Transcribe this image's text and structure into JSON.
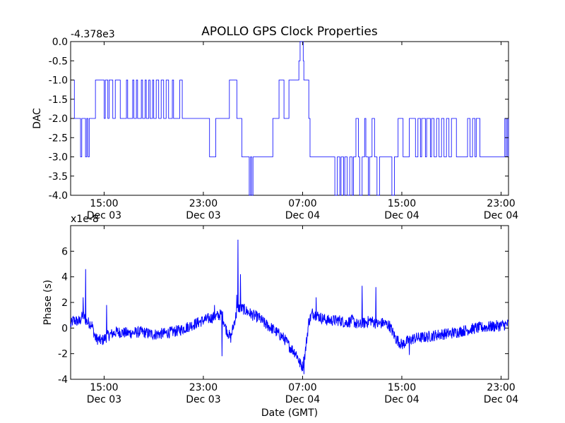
{
  "chart_data": [
    {
      "type": "line",
      "title": "APOLLO GPS Clock Properties",
      "ylabel": "DAC",
      "xlabel": "",
      "offset_label": "-4.378e3",
      "ylim": [
        -4.0,
        0.0
      ],
      "yticks": [
        "0.0",
        "-0.5",
        "-1.0",
        "-1.5",
        "-2.0",
        "-2.5",
        "-3.0",
        "-3.5",
        "-4.0"
      ],
      "xticks": [
        {
          "time": "15:00",
          "date": "Dec 03",
          "hours": 15
        },
        {
          "time": "23:00",
          "date": "Dec 03",
          "hours": 23
        },
        {
          "time": "07:00",
          "date": "Dec 04",
          "hours": 31
        },
        {
          "time": "15:00",
          "date": "Dec 04",
          "hours": 39
        },
        {
          "time": "23:00",
          "date": "Dec 04",
          "hours": 47
        }
      ],
      "xlim_hours": [
        12.3,
        47.6
      ],
      "series": [
        {
          "color": "#0000ff",
          "points": [
            [
              12.3,
              -1.0
            ],
            [
              12.6,
              -2.0
            ],
            [
              13.0,
              -2.0
            ],
            [
              13.1,
              -3.0
            ],
            [
              13.2,
              -2.0
            ],
            [
              13.5,
              -3.0
            ],
            [
              13.6,
              -2.0
            ],
            [
              13.7,
              -3.0
            ],
            [
              13.8,
              -2.0
            ],
            [
              14.2,
              -2.0
            ],
            [
              14.3,
              -1.0
            ],
            [
              14.9,
              -1.0
            ],
            [
              15.0,
              -2.0
            ],
            [
              15.1,
              -1.0
            ],
            [
              15.3,
              -2.0
            ],
            [
              15.4,
              -1.0
            ],
            [
              15.6,
              -1.0
            ],
            [
              15.7,
              -2.0
            ],
            [
              15.9,
              -1.0
            ],
            [
              16.2,
              -1.0
            ],
            [
              16.3,
              -2.0
            ],
            [
              16.7,
              -2.0
            ],
            [
              16.8,
              -1.0
            ],
            [
              16.9,
              -2.0
            ],
            [
              17.2,
              -2.0
            ],
            [
              17.3,
              -1.0
            ],
            [
              17.4,
              -2.0
            ],
            [
              17.6,
              -1.0
            ],
            [
              17.7,
              -2.0
            ],
            [
              18.0,
              -1.0
            ],
            [
              18.1,
              -2.0
            ],
            [
              18.3,
              -1.0
            ],
            [
              18.4,
              -2.0
            ],
            [
              18.6,
              -1.0
            ],
            [
              18.7,
              -2.0
            ],
            [
              18.9,
              -1.0
            ],
            [
              19.0,
              -2.0
            ],
            [
              19.2,
              -1.0
            ],
            [
              19.4,
              -2.0
            ],
            [
              19.6,
              -1.0
            ],
            [
              19.8,
              -2.0
            ],
            [
              20.0,
              -1.0
            ],
            [
              20.2,
              -2.0
            ],
            [
              20.5,
              -1.0
            ],
            [
              20.6,
              -2.0
            ],
            [
              21.0,
              -2.0
            ],
            [
              21.1,
              -1.0
            ],
            [
              21.3,
              -2.0
            ],
            [
              22.0,
              -2.0
            ],
            [
              23.0,
              -2.0
            ],
            [
              23.4,
              -2.0
            ],
            [
              23.5,
              -3.0
            ],
            [
              23.9,
              -3.0
            ],
            [
              24.0,
              -2.0
            ],
            [
              25.0,
              -2.0
            ],
            [
              25.1,
              -1.0
            ],
            [
              25.6,
              -1.0
            ],
            [
              25.7,
              -2.0
            ],
            [
              26.0,
              -2.0
            ],
            [
              26.1,
              -3.0
            ],
            [
              26.6,
              -3.0
            ],
            [
              26.7,
              -4.0
            ],
            [
              26.8,
              -3.0
            ],
            [
              26.9,
              -4.0
            ],
            [
              27.0,
              -3.0
            ],
            [
              28.5,
              -3.0
            ],
            [
              28.6,
              -2.0
            ],
            [
              29.0,
              -2.0
            ],
            [
              29.1,
              -1.0
            ],
            [
              29.4,
              -1.0
            ],
            [
              29.5,
              -2.0
            ],
            [
              29.8,
              -2.0
            ],
            [
              29.9,
              -1.0
            ],
            [
              30.6,
              -1.0
            ],
            [
              30.7,
              -0.5
            ],
            [
              30.8,
              0.0
            ],
            [
              30.95,
              0.0
            ],
            [
              31.05,
              -0.5
            ],
            [
              31.1,
              -1.0
            ],
            [
              31.4,
              -1.0
            ],
            [
              31.5,
              -2.0
            ],
            [
              31.6,
              -3.0
            ],
            [
              33.5,
              -3.0
            ],
            [
              33.6,
              -4.0
            ],
            [
              33.8,
              -3.0
            ],
            [
              34.0,
              -4.0
            ],
            [
              34.1,
              -3.0
            ],
            [
              34.3,
              -4.0
            ],
            [
              34.4,
              -3.0
            ],
            [
              34.6,
              -4.0
            ],
            [
              34.8,
              -3.0
            ],
            [
              35.0,
              -4.0
            ],
            [
              35.1,
              -3.0
            ],
            [
              35.3,
              -2.0
            ],
            [
              35.5,
              -3.0
            ],
            [
              35.6,
              -4.0
            ],
            [
              35.8,
              -3.0
            ],
            [
              36.0,
              -2.0
            ],
            [
              36.1,
              -3.0
            ],
            [
              36.3,
              -4.0
            ],
            [
              36.4,
              -3.0
            ],
            [
              36.6,
              -2.0
            ],
            [
              36.8,
              -3.0
            ],
            [
              37.0,
              -4.0
            ],
            [
              37.2,
              -3.0
            ],
            [
              38.0,
              -3.0
            ],
            [
              38.2,
              -4.0
            ],
            [
              38.4,
              -3.0
            ],
            [
              38.6,
              -3.0
            ],
            [
              38.7,
              -2.0
            ],
            [
              39.0,
              -2.0
            ],
            [
              39.1,
              -3.0
            ],
            [
              39.5,
              -3.0
            ],
            [
              39.6,
              -2.0
            ],
            [
              40.0,
              -2.0
            ],
            [
              40.1,
              -3.0
            ],
            [
              40.3,
              -2.0
            ],
            [
              40.5,
              -3.0
            ],
            [
              40.6,
              -2.0
            ],
            [
              40.9,
              -3.0
            ],
            [
              41.0,
              -2.0
            ],
            [
              41.3,
              -3.0
            ],
            [
              41.4,
              -2.0
            ],
            [
              41.6,
              -3.0
            ],
            [
              41.8,
              -2.0
            ],
            [
              42.0,
              -3.0
            ],
            [
              42.2,
              -2.0
            ],
            [
              42.4,
              -3.0
            ],
            [
              42.6,
              -2.0
            ],
            [
              42.8,
              -3.0
            ],
            [
              43.0,
              -2.0
            ],
            [
              43.3,
              -2.0
            ],
            [
              43.4,
              -3.0
            ],
            [
              44.2,
              -3.0
            ],
            [
              44.3,
              -2.0
            ],
            [
              44.5,
              -3.0
            ],
            [
              44.7,
              -2.0
            ],
            [
              44.9,
              -3.0
            ],
            [
              45.0,
              -2.0
            ],
            [
              45.3,
              -3.0
            ],
            [
              47.2,
              -3.0
            ],
            [
              47.3,
              -2.0
            ],
            [
              47.4,
              -3.0
            ],
            [
              47.5,
              -2.0
            ],
            [
              47.6,
              -3.0
            ]
          ]
        }
      ]
    },
    {
      "type": "line",
      "title": "",
      "ylabel": "Phase (s)",
      "xlabel": "Date (GMT)",
      "offset_label": "x1e-8",
      "ylim": [
        -4,
        8
      ],
      "yticks": [
        "6",
        "4",
        "2",
        "0",
        "-2",
        "-4"
      ],
      "xticks": [
        {
          "time": "15:00",
          "date": "Dec 03",
          "hours": 15
        },
        {
          "time": "23:00",
          "date": "Dec 03",
          "hours": 23
        },
        {
          "time": "07:00",
          "date": "Dec 04",
          "hours": 31
        },
        {
          "time": "15:00",
          "date": "Dec 04",
          "hours": 39
        },
        {
          "time": "23:00",
          "date": "Dec 04",
          "hours": 47
        }
      ],
      "xlim_hours": [
        12.3,
        47.6
      ],
      "series": [
        {
          "color": "#0000ff",
          "trend": [
            [
              12.3,
              0.2
            ],
            [
              12.5,
              0.6
            ],
            [
              13.0,
              0.5
            ],
            [
              13.3,
              1.0
            ],
            [
              13.6,
              0.5
            ],
            [
              14.0,
              0.3
            ],
            [
              14.3,
              -0.8
            ],
            [
              14.8,
              -1.0
            ],
            [
              15.3,
              -0.6
            ],
            [
              16.0,
              -0.3
            ],
            [
              17.0,
              -0.4
            ],
            [
              18.0,
              -0.3
            ],
            [
              19.0,
              -0.5
            ],
            [
              20.0,
              -0.4
            ],
            [
              21.0,
              -0.2
            ],
            [
              22.0,
              0.2
            ],
            [
              23.0,
              0.6
            ],
            [
              24.0,
              0.9
            ],
            [
              24.5,
              1.1
            ],
            [
              24.8,
              0.0
            ],
            [
              25.2,
              -0.8
            ],
            [
              25.5,
              0.5
            ],
            [
              25.8,
              1.6
            ],
            [
              26.2,
              1.5
            ],
            [
              27.0,
              1.0
            ],
            [
              27.5,
              0.8
            ],
            [
              28.0,
              0.3
            ],
            [
              28.5,
              0.0
            ],
            [
              29.0,
              -0.4
            ],
            [
              29.5,
              -0.8
            ],
            [
              30.0,
              -1.5
            ],
            [
              30.5,
              -2.0
            ],
            [
              30.8,
              -2.8
            ],
            [
              31.0,
              -3.0
            ],
            [
              31.2,
              -2.0
            ],
            [
              31.5,
              0.5
            ],
            [
              31.8,
              1.2
            ],
            [
              32.5,
              0.8
            ],
            [
              33.0,
              0.6
            ],
            [
              34.0,
              0.6
            ],
            [
              34.5,
              0.4
            ],
            [
              35.0,
              0.6
            ],
            [
              35.5,
              0.2
            ],
            [
              36.0,
              0.4
            ],
            [
              36.5,
              0.6
            ],
            [
              37.0,
              0.3
            ],
            [
              37.5,
              0.4
            ],
            [
              38.0,
              0.2
            ],
            [
              38.5,
              -0.8
            ],
            [
              39.0,
              -1.3
            ],
            [
              39.5,
              -1.0
            ],
            [
              40.0,
              -0.8
            ],
            [
              41.0,
              -0.7
            ],
            [
              42.0,
              -0.5
            ],
            [
              43.0,
              -0.4
            ],
            [
              44.0,
              -0.2
            ],
            [
              45.0,
              0.0
            ],
            [
              46.0,
              0.1
            ],
            [
              47.0,
              0.2
            ],
            [
              47.6,
              0.3
            ]
          ],
          "noise_amplitude": 0.45,
          "spikes": [
            [
              13.5,
              4.6
            ],
            [
              13.3,
              2.4
            ],
            [
              15.2,
              1.8
            ],
            [
              23.9,
              1.8
            ],
            [
              24.5,
              -2.2
            ],
            [
              25.8,
              6.9
            ],
            [
              26.0,
              4.2
            ],
            [
              31.1,
              -3.6
            ],
            [
              32.1,
              2.4
            ],
            [
              35.8,
              3.3
            ],
            [
              36.9,
              3.5
            ],
            [
              36.9,
              3.2
            ],
            [
              39.6,
              -2.1
            ],
            [
              25.7,
              2.6
            ]
          ]
        }
      ]
    }
  ]
}
